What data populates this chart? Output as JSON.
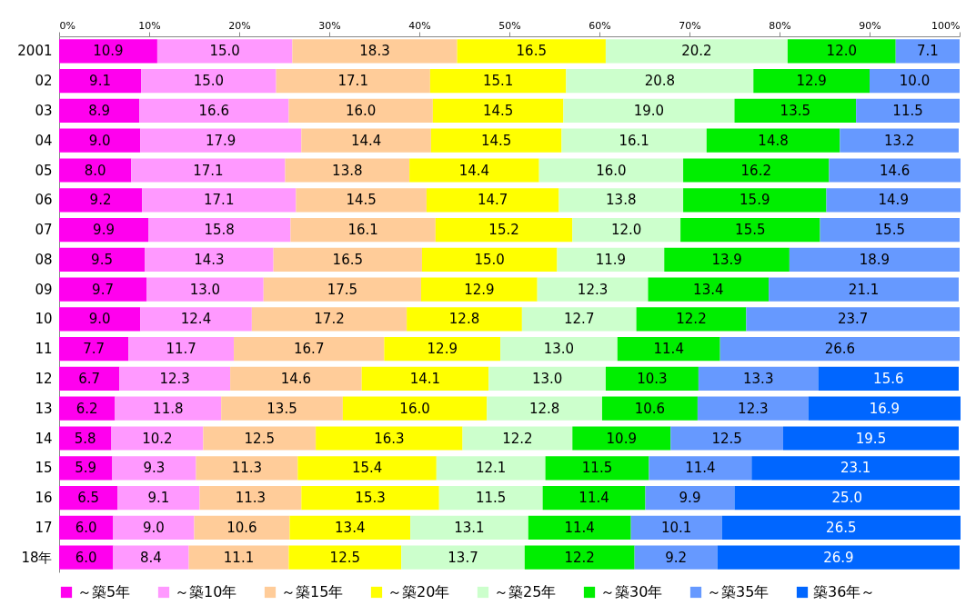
{
  "chart_data": {
    "type": "bar",
    "orientation": "horizontal",
    "stacked": true,
    "grid": false,
    "legend": "bottom",
    "categories": [
      "2001",
      "02",
      "03",
      "04",
      "05",
      "06",
      "07",
      "08",
      "09",
      "10",
      "11",
      "12",
      "13",
      "14",
      "15",
      "16",
      "17",
      "18年"
    ],
    "xlim": [
      0,
      100
    ],
    "xticks": [
      {
        "value": 0,
        "label": "0%"
      },
      {
        "value": 10,
        "label": "10%"
      },
      {
        "value": 20,
        "label": "20%"
      },
      {
        "value": 30,
        "label": "30%"
      },
      {
        "value": 40,
        "label": "40%"
      },
      {
        "value": 50,
        "label": "50%"
      },
      {
        "value": 60,
        "label": "60%"
      },
      {
        "value": 70,
        "label": "70%"
      },
      {
        "value": 80,
        "label": "80%"
      },
      {
        "value": 90,
        "label": "90%"
      },
      {
        "value": 100,
        "label": "100%"
      }
    ],
    "series": [
      {
        "name": "～築5年",
        "color": "#ff00ee",
        "values": [
          10.9,
          9.1,
          8.9,
          9.0,
          8.0,
          9.2,
          9.9,
          9.5,
          9.7,
          9.0,
          7.7,
          6.7,
          6.2,
          5.8,
          5.9,
          6.5,
          6.0,
          6.0
        ],
        "value_labels": [
          "10.9",
          "9.1",
          "8.9",
          "9.0",
          "8.0",
          "9.2",
          "9.9",
          "9.5",
          "9.7",
          "9.0",
          "7.7",
          "6.7",
          "6.2",
          "5.8",
          "5.9",
          "6.5",
          "6.0",
          "6.0"
        ]
      },
      {
        "name": "～築10年",
        "color": "#ff99ff",
        "values": [
          15.0,
          15.0,
          16.6,
          17.9,
          17.1,
          17.1,
          15.8,
          14.3,
          13.0,
          12.4,
          11.7,
          12.3,
          11.8,
          10.2,
          9.3,
          9.1,
          9.0,
          8.4
        ],
        "value_labels": [
          "15.0",
          "15.0",
          "16.6",
          "17.9",
          "17.1",
          "17.1",
          "15.8",
          "14.3",
          "13.0",
          "12.4",
          "11.7",
          "12.3",
          "11.8",
          "10.2",
          "9.3",
          "9.1",
          "9.0",
          "8.4"
        ]
      },
      {
        "name": "～築15年",
        "color": "#ffcc99",
        "values": [
          18.3,
          17.1,
          16.0,
          14.4,
          13.8,
          14.5,
          16.1,
          16.5,
          17.5,
          17.2,
          16.7,
          14.6,
          13.5,
          12.5,
          11.3,
          11.3,
          10.6,
          11.1
        ],
        "value_labels": [
          "18.3",
          "17.1",
          "16.0",
          "14.4",
          "13.8",
          "14.5",
          "16.1",
          "16.5",
          "17.5",
          "17.2",
          "16.7",
          "14.6",
          "13.5",
          "12.5",
          "11.3",
          "11.3",
          "10.6",
          "11.1"
        ]
      },
      {
        "name": "～築20年",
        "color": "#ffff00",
        "values": [
          16.5,
          15.1,
          14.5,
          14.5,
          14.4,
          14.7,
          15.2,
          15.0,
          12.9,
          12.8,
          12.9,
          14.1,
          16.0,
          16.3,
          15.4,
          15.3,
          13.4,
          12.5
        ],
        "value_labels": [
          "16.5",
          "15.1",
          "14.5",
          "14.5",
          "14.4",
          "14.7",
          "15.2",
          "15.0",
          "12.9",
          "12.8",
          "12.9",
          "14.1",
          "16.0",
          "16.3",
          "15.4",
          "15.3",
          "13.4",
          "12.5"
        ]
      },
      {
        "name": "～築25年",
        "color": "#ccffcc",
        "values": [
          20.2,
          20.8,
          19.0,
          16.1,
          16.0,
          13.8,
          12.0,
          11.9,
          12.3,
          12.7,
          13.0,
          13.0,
          12.8,
          12.2,
          12.1,
          11.5,
          13.1,
          13.7
        ],
        "value_labels": [
          "20.2",
          "20.8",
          "19.0",
          "16.1",
          "16.0",
          "13.8",
          "12.0",
          "11.9",
          "12.3",
          "12.7",
          "13.0",
          "13.0",
          "12.8",
          "12.2",
          "12.1",
          "11.5",
          "13.1",
          "13.7"
        ]
      },
      {
        "name": "～築30年",
        "color": "#00ee00",
        "values": [
          12.0,
          12.9,
          13.5,
          14.8,
          16.2,
          15.9,
          15.5,
          13.9,
          13.4,
          12.2,
          11.4,
          10.3,
          10.6,
          10.9,
          11.5,
          11.4,
          11.4,
          12.2
        ],
        "value_labels": [
          "12.0",
          "12.9",
          "13.5",
          "14.8",
          "16.2",
          "15.9",
          "15.5",
          "13.9",
          "13.4",
          "12.2",
          "11.4",
          "10.3",
          "10.6",
          "10.9",
          "11.5",
          "11.4",
          "11.4",
          "12.2"
        ]
      },
      {
        "name": "～築35年",
        "color": "#6699ff",
        "values": [
          7.1,
          10.0,
          11.5,
          13.2,
          14.6,
          14.9,
          15.5,
          18.9,
          21.1,
          23.7,
          26.6,
          13.3,
          12.3,
          12.5,
          11.4,
          9.9,
          10.1,
          9.2
        ],
        "value_labels": [
          "7.1",
          "10.0",
          "11.5",
          "13.2",
          "14.6",
          "14.9",
          "15.5",
          "18.9",
          "21.1",
          "23.7",
          "26.6",
          "13.3",
          "12.3",
          "12.5",
          "11.4",
          "9.9",
          "10.1",
          "9.2"
        ]
      },
      {
        "name": "築36年～",
        "color": "#0066ff",
        "values": [
          null,
          null,
          null,
          null,
          null,
          null,
          null,
          null,
          null,
          null,
          null,
          15.6,
          16.9,
          19.5,
          23.1,
          25.0,
          26.5,
          26.9
        ],
        "value_labels": [
          null,
          null,
          null,
          null,
          null,
          null,
          null,
          null,
          null,
          null,
          null,
          "15.6",
          "16.9",
          "19.5",
          "23.1",
          "25.0",
          "26.5",
          "26.9"
        ]
      }
    ]
  }
}
